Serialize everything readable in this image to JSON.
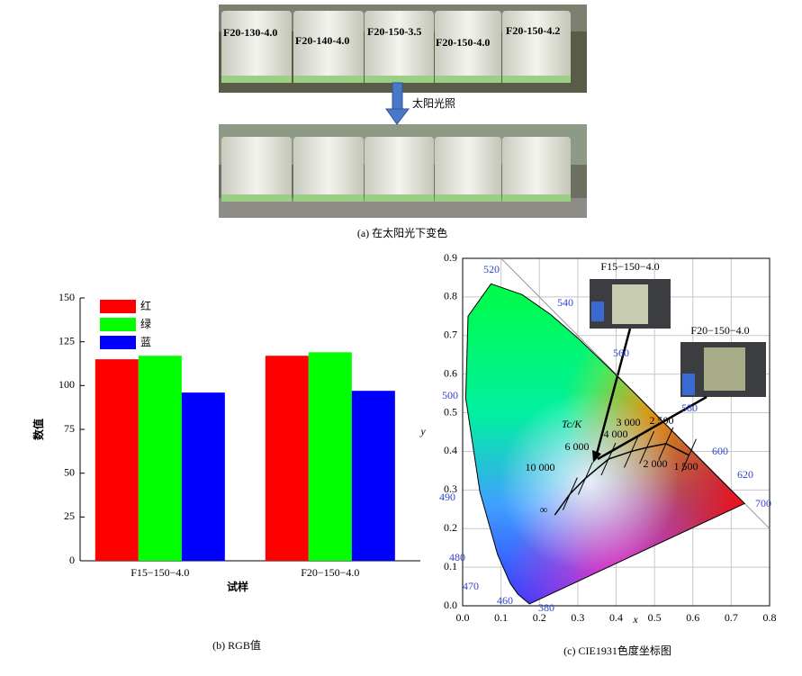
{
  "photo_panel": {
    "labels": [
      "F20-130-4.0",
      "F20-140-4.0",
      "F20-150-3.5",
      "F20-150-4.0",
      "F20-150-4.2"
    ],
    "arrow_label": "太阳光照",
    "caption": "(a)  在太阳光下变色"
  },
  "chart_data": [
    {
      "type": "bar",
      "caption": "(b)  RGB值",
      "xlabel": "试样",
      "ylabel": "数值",
      "categories": [
        "F15−150−4.0",
        "F20−150−4.0"
      ],
      "series": [
        {
          "name": "红",
          "color": "#ff0000",
          "values": [
            115,
            117
          ]
        },
        {
          "name": "绿",
          "color": "#00ff00",
          "values": [
            117,
            119
          ]
        },
        {
          "name": "蓝",
          "color": "#0000ff",
          "values": [
            96,
            97
          ]
        }
      ],
      "ylim": [
        0,
        150
      ],
      "yticks": [
        0,
        25,
        50,
        75,
        100,
        125,
        150
      ],
      "legend": "upper-left"
    },
    {
      "type": "chromaticity",
      "caption": "(c) CIE1931色度坐标图",
      "xlabel": "x",
      "ylabel": "y",
      "xlim": [
        0,
        0.8
      ],
      "xticks": [
        {
          "value": 0,
          "label": "0.0"
        },
        {
          "value": 0.1,
          "label": "0.1"
        },
        {
          "value": 0.2,
          "label": "0.2"
        },
        {
          "value": 0.3,
          "label": "0.3"
        },
        {
          "value": 0.4,
          "label": "0.4"
        },
        {
          "value": 0.5,
          "label": "0.5"
        },
        {
          "value": 0.6,
          "label": "0.6"
        },
        {
          "value": 0.7,
          "label": "0.7"
        },
        {
          "value": 0.8,
          "label": "0.8"
        }
      ],
      "ylim": [
        0,
        0.9
      ],
      "yticks": [
        {
          "value": 0,
          "label": "0.0"
        },
        {
          "value": 0.1,
          "label": "0.1"
        },
        {
          "value": 0.2,
          "label": "0.2"
        },
        {
          "value": 0.3,
          "label": "0.3"
        },
        {
          "value": 0.4,
          "label": "0.4"
        },
        {
          "value": 0.5,
          "label": "0.5"
        },
        {
          "value": 0.6,
          "label": "0.6"
        },
        {
          "value": 0.7,
          "label": "0.7"
        },
        {
          "value": 0.8,
          "label": "0.8"
        },
        {
          "value": 0.9,
          "label": "0.9"
        }
      ],
      "grid": true,
      "wavelength_labels": [
        "520",
        "540",
        "560",
        "580",
        "600",
        "620",
        "700",
        "500",
        "490",
        "480",
        "470",
        "460",
        "380"
      ],
      "temperature_title": "Tc/K",
      "temperature_labels": [
        "10 000",
        "6 000",
        "4 000",
        "3 000",
        "2 500",
        "2 000",
        "1 500",
        "∞"
      ],
      "inset_labels": [
        "F15−150−4.0",
        "F20−150−4.0"
      ]
    }
  ]
}
